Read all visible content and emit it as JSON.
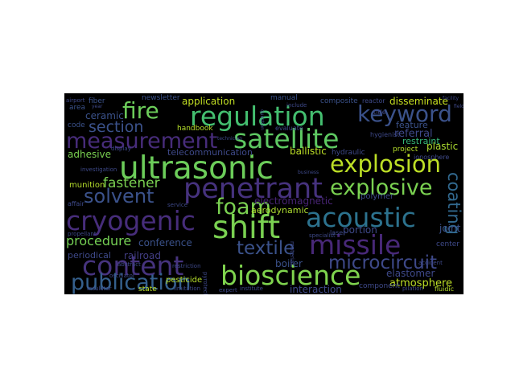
{
  "palette": {
    "background": "#000000"
  },
  "words": [
    {
      "text": "regulation",
      "color": "#44bf70"
    },
    {
      "text": "satellite",
      "color": "#5ec962"
    },
    {
      "text": "keyword",
      "color": "#3b528b"
    },
    {
      "text": "fire",
      "color": "#6ccd5a"
    },
    {
      "text": "measurement",
      "color": "#472c7a"
    },
    {
      "text": "ultrasonic",
      "color": "#6ccd5a"
    },
    {
      "text": "explosion",
      "color": "#bddf26"
    },
    {
      "text": "section",
      "color": "#3b528b"
    },
    {
      "text": "penetrant",
      "color": "#46327e"
    },
    {
      "text": "explosive",
      "color": "#7ad151"
    },
    {
      "text": "solvent",
      "color": "#3b528b"
    },
    {
      "text": "fastener",
      "color": "#7ad151"
    },
    {
      "text": "foam",
      "color": "#7ad151"
    },
    {
      "text": "acoustic",
      "color": "#2c728e"
    },
    {
      "text": "cryogenic",
      "color": "#472d7b"
    },
    {
      "text": "shift",
      "color": "#7ad151"
    },
    {
      "text": "missile",
      "color": "#482878"
    },
    {
      "text": "coating",
      "color": "#31688e"
    },
    {
      "text": "content",
      "color": "#46337e"
    },
    {
      "text": "textile",
      "color": "#3b528b"
    },
    {
      "text": "procedure",
      "color": "#75d054"
    },
    {
      "text": "microcircuit",
      "color": "#3e4989"
    },
    {
      "text": "bioscience",
      "color": "#7fd34e"
    },
    {
      "text": "publication",
      "color": "#35608d"
    },
    {
      "text": "atmosphere",
      "color": "#bddf26"
    },
    {
      "text": "application",
      "color": "#c2df23"
    },
    {
      "text": "disseminate",
      "color": "#c8e020"
    },
    {
      "text": "ceramic",
      "color": "#3b528b"
    },
    {
      "text": "adhesive",
      "color": "#7ad151"
    },
    {
      "text": "munition",
      "color": "#b5de2b"
    },
    {
      "text": "ballistic",
      "color": "#bddf26"
    },
    {
      "text": "plastic",
      "color": "#addc30"
    },
    {
      "text": "referral",
      "color": "#3e4989"
    },
    {
      "text": "restraint",
      "color": "#35b779"
    },
    {
      "text": "feature",
      "color": "#3b528b"
    },
    {
      "text": "electromagnetic",
      "color": "#482475"
    },
    {
      "text": "aerodynamic",
      "color": "#addc30"
    },
    {
      "text": "telecommunication",
      "color": "#3e4989"
    },
    {
      "text": "conference",
      "color": "#3b528b"
    },
    {
      "text": "railroad",
      "color": "#433e85"
    },
    {
      "text": "periodical",
      "color": "#3e4989"
    },
    {
      "text": "pesticide",
      "color": "#b5de2b"
    },
    {
      "text": "boiler",
      "color": "#3b528b"
    },
    {
      "text": "portion",
      "color": "#3e4989"
    },
    {
      "text": "joint",
      "color": "#3b528b"
    },
    {
      "text": "elastomer",
      "color": "#3e4989"
    },
    {
      "text": "interaction",
      "color": "#3e4989"
    },
    {
      "text": "component",
      "color": "#3e4989"
    },
    {
      "text": "polymer",
      "color": "#3e4989"
    },
    {
      "text": "hydraulic",
      "color": "#3e4989"
    },
    {
      "text": "laser",
      "color": "#3e4989"
    },
    {
      "text": "center",
      "color": "#3e4989"
    },
    {
      "text": "handbook",
      "color": "#b5de2b"
    },
    {
      "text": "project",
      "color": "#b5de2b"
    },
    {
      "text": "newsletter",
      "color": "#3b528b"
    },
    {
      "text": "fiber",
      "color": "#3b528b"
    },
    {
      "text": "area",
      "color": "#3b528b"
    },
    {
      "text": "code",
      "color": "#3b528b"
    },
    {
      "text": "manual",
      "color": "#3b528b"
    },
    {
      "text": "composite",
      "color": "#3b528b"
    },
    {
      "text": "state",
      "color": "#bddf26"
    },
    {
      "text": "hygienist",
      "color": "#3e4989"
    },
    {
      "text": "title",
      "color": "#3e4989"
    },
    {
      "text": "ionosphere",
      "color": "#3e4989"
    },
    {
      "text": "fluidic",
      "color": "#b5de2b"
    },
    {
      "text": "reactor",
      "color": "#3e4989"
    },
    {
      "text": "evaluate",
      "color": "#3e4989"
    },
    {
      "text": "airport",
      "color": "#3e4989"
    },
    {
      "text": "include",
      "color": "#3e4989"
    },
    {
      "text": "material",
      "color": "#3e4989"
    },
    {
      "text": "propellant",
      "color": "#3e4989"
    },
    {
      "text": "affair",
      "color": "#3e4989"
    },
    {
      "text": "abstract",
      "color": "#3e4989"
    },
    {
      "text": "service",
      "color": "#3e4989"
    },
    {
      "text": "expert",
      "color": "#3e4989"
    },
    {
      "text": "institute",
      "color": "#3e4989"
    },
    {
      "text": "facility",
      "color": "#3e4989"
    },
    {
      "text": "pyrotechnic",
      "color": "#3e4989"
    },
    {
      "text": "restriction",
      "color": "#3e4989"
    },
    {
      "text": "oscillator",
      "color": "#3e4989"
    },
    {
      "text": "display",
      "color": "#3e4989"
    },
    {
      "text": "insulator",
      "color": "#3e4989"
    },
    {
      "text": "specialist",
      "color": "#3e4989"
    },
    {
      "text": "accident",
      "color": "#3e4989"
    },
    {
      "text": "pilation",
      "color": "#3e4989"
    },
    {
      "text": "limitation",
      "color": "#3e4989"
    },
    {
      "text": "investigation",
      "color": "#3e4989"
    },
    {
      "text": "year",
      "color": "#3e4989"
    },
    {
      "text": "technician",
      "color": "#3e4989"
    },
    {
      "text": "question",
      "color": "#3e4989"
    },
    {
      "text": "business",
      "color": "#3e4989"
    },
    {
      "text": "field",
      "color": "#3e4989"
    }
  ]
}
